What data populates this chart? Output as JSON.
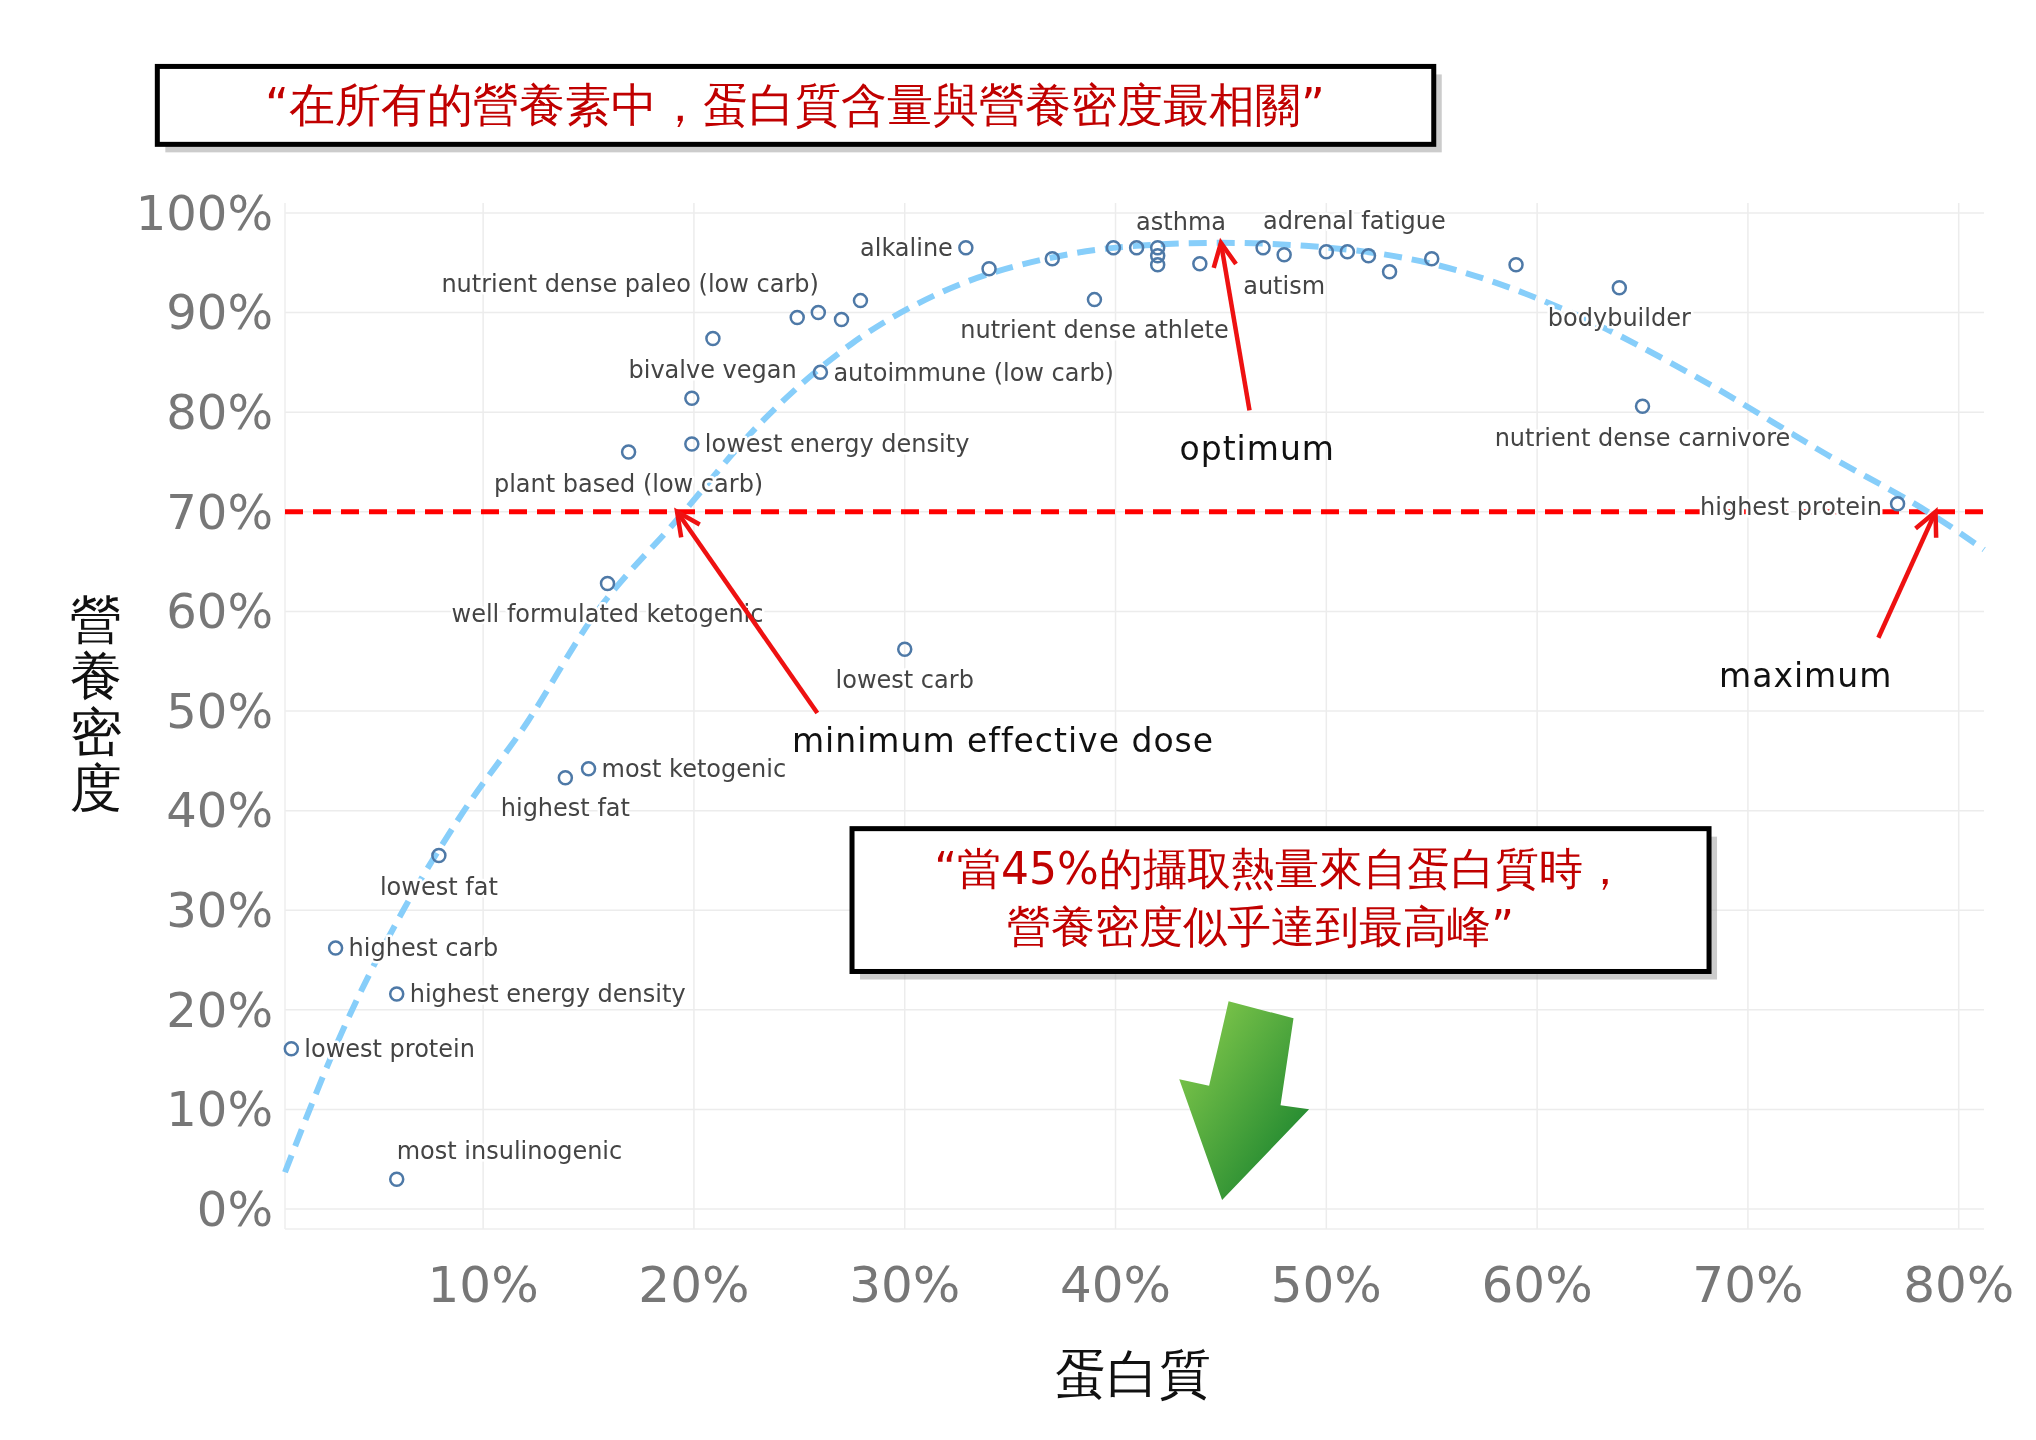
{
  "chart_data": {
    "type": "scatter",
    "title": "“在所有的營養素中，蛋白質含量與營養密度最相關”",
    "xlabel": "蛋白質",
    "ylabel": "營養密度",
    "xlim": [
      0.6,
      81.2
    ],
    "ylim": [
      -2,
      101
    ],
    "xticks": [
      {
        "value": 10,
        "label": "10%"
      },
      {
        "value": 20,
        "label": "20%"
      },
      {
        "value": 30,
        "label": "30%"
      },
      {
        "value": 40,
        "label": "40%"
      },
      {
        "value": 50,
        "label": "50%"
      },
      {
        "value": 60,
        "label": "60%"
      },
      {
        "value": 70,
        "label": "70%"
      },
      {
        "value": 80,
        "label": "80%"
      }
    ],
    "yticks": [
      {
        "value": 0,
        "label": "0%"
      },
      {
        "value": 10,
        "label": "10%"
      },
      {
        "value": 20,
        "label": "20%"
      },
      {
        "value": 30,
        "label": "30%"
      },
      {
        "value": 40,
        "label": "40%"
      },
      {
        "value": 50,
        "label": "50%"
      },
      {
        "value": 60,
        "label": "60%"
      },
      {
        "value": 70,
        "label": "70%"
      },
      {
        "value": 80,
        "label": "80%"
      },
      {
        "value": 90,
        "label": "90%"
      },
      {
        "value": 100,
        "label": "100%"
      }
    ],
    "grid": true,
    "marker": "circle",
    "series": [
      {
        "color": "#4e79a7",
        "x": [
          0.9,
          3.0,
          5.9,
          5.9,
          7.9,
          13.9,
          15.0,
          15.9,
          16.9,
          19.9,
          19.9,
          20.9,
          24.9,
          25.9,
          27.0,
          27.9,
          26.0,
          30.0,
          32.9,
          34.0,
          37.0,
          39.0,
          39.9,
          41.0,
          42.0,
          42.0,
          42.0,
          44.0,
          47.0,
          48.0,
          50.0,
          51.0,
          52.0,
          53.0,
          55.0,
          59.0,
          63.9,
          65.0,
          77.1
        ],
        "values": [
          16.1,
          26.2,
          21.6,
          3.0,
          35.5,
          43.3,
          44.2,
          62.8,
          76.0,
          76.8,
          81.4,
          87.4,
          89.5,
          90.0,
          89.3,
          91.2,
          84.0,
          56.2,
          96.5,
          94.4,
          95.4,
          91.3,
          96.5,
          96.5,
          96.5,
          95.7,
          94.8,
          94.9,
          96.5,
          95.8,
          96.1,
          96.1,
          95.7,
          94.1,
          95.4,
          94.8,
          92.5,
          80.6,
          70.8
        ]
      },
      {
        "type": "line",
        "color": "#87cefa",
        "line_style": "dashed",
        "marker": "none",
        "x": [
          0.6,
          3.5,
          6,
          9,
          12.1,
          15.2,
          19.2,
          23.2,
          27.5,
          31.8,
          36.7,
          41,
          45,
          49,
          55.2,
          61.4,
          67.5,
          73.7,
          78.9,
          81.2
        ],
        "values": [
          3.7,
          18.7,
          29.2,
          39.7,
          48.9,
          59.4,
          69.2,
          79,
          86.9,
          92.1,
          95.4,
          96.7,
          97,
          96.7,
          94.8,
          90.2,
          83.6,
          75.8,
          69.5,
          66.2
        ]
      }
    ],
    "ref_lines": [
      {
        "axis": "y",
        "value": 70,
        "color": "#ff0000",
        "line_style": "dashed"
      }
    ],
    "annotations": [
      {
        "text": "lowest protein",
        "x": 0.9,
        "y": 16.1
      },
      {
        "text": "highest carb",
        "x": 3.0,
        "y": 26.2
      },
      {
        "text": "highest energy density",
        "x": 5.9,
        "y": 21.6
      },
      {
        "text": "most insulinogenic",
        "x": 5.9,
        "y": 3.0
      },
      {
        "text": "lowest fat",
        "x": 7.9,
        "y": 35.5
      },
      {
        "text": "highest fat",
        "x": 13.9,
        "y": 43.3
      },
      {
        "text": "most ketogenic",
        "x": 15.0,
        "y": 44.2
      },
      {
        "text": "well formulated ketogenic",
        "x": 15.9,
        "y": 62.8
      },
      {
        "text": "plant based (low carb)",
        "x": 16.9,
        "y": 76.0
      },
      {
        "text": "lowest energy density",
        "x": 19.9,
        "y": 76.8
      },
      {
        "text": "bivalve vegan",
        "x": 19.9,
        "y": 81.4
      },
      {
        "text": "nutrient dense paleo (low carb)",
        "x": 27.9,
        "y": 91.2
      },
      {
        "text": "autoimmune (low carb)",
        "x": 26.0,
        "y": 84.0
      },
      {
        "text": "lowest carb",
        "x": 30.0,
        "y": 56.2
      },
      {
        "text": "alkaline",
        "x": 32.9,
        "y": 96.5
      },
      {
        "text": "nutrient dense athlete",
        "x": 39.0,
        "y": 91.3
      },
      {
        "text": "asthma",
        "x": 42.0,
        "y": 96.5
      },
      {
        "text": "adrenal fatigue",
        "x": 47.0,
        "y": 96.5
      },
      {
        "text": "autism",
        "x": 48.0,
        "y": 95.8
      },
      {
        "text": "bodybuilder",
        "x": 63.9,
        "y": 92.5
      },
      {
        "text": "nutrient dense carnivore",
        "x": 65.0,
        "y": 80.6
      },
      {
        "text": "highest protein",
        "x": 77.1,
        "y": 70.8
      },
      {
        "text": "optimum",
        "x": 45,
        "y": 97
      },
      {
        "text": "minimum effective dose",
        "x": 19.2,
        "y": 70
      },
      {
        "text": "maximum",
        "x": 78.9,
        "y": 70
      },
      "“當45%的攝取熱量來自蛋白質時，營養密度似乎達到最高峰”"
    ]
  }
}
